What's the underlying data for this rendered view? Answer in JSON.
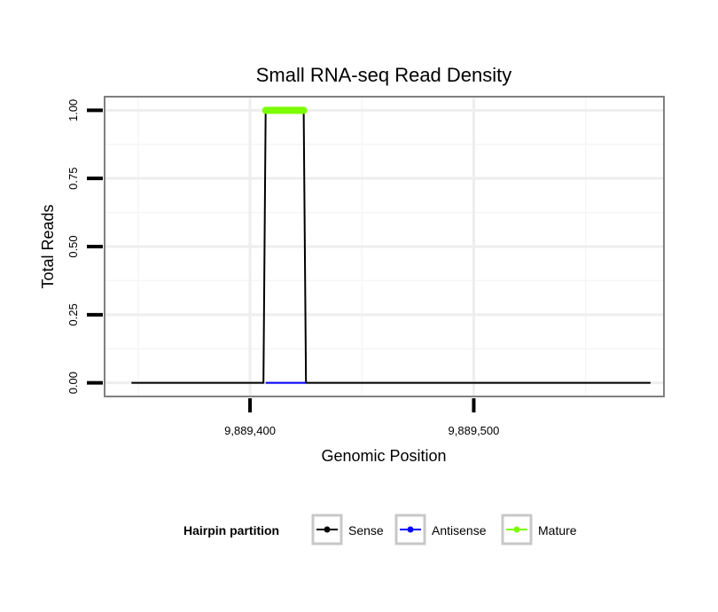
{
  "chart_data": {
    "type": "line",
    "title": "Small RNA-seq Read Density",
    "xlabel": "Genomic Position",
    "ylabel": "Total Reads",
    "xlim": [
      9889335,
      9889585
    ],
    "ylim": [
      -0.05,
      1.05
    ],
    "x_ticks": [
      9889400,
      9889500
    ],
    "x_tick_labels": [
      "9,889,400",
      "9,889,500"
    ],
    "y_ticks": [
      0,
      0.25,
      0.5,
      0.75,
      1
    ],
    "y_tick_labels": [
      "0.00",
      "0.25",
      "0.50",
      "0.75",
      "1.00"
    ],
    "grid": true,
    "legend": {
      "title": "Hairpin partition",
      "position": "bottom",
      "entries": [
        {
          "label": "Sense",
          "color": "#000000"
        },
        {
          "label": "Antisense",
          "color": "#0000ff"
        },
        {
          "label": "Mature",
          "color": "#7cfc00"
        }
      ]
    },
    "series": [
      {
        "name": "Sense",
        "color": "#000000",
        "points": [
          [
            9889347,
            0
          ],
          [
            9889406,
            0
          ],
          [
            9889407,
            1
          ],
          [
            9889424,
            1
          ],
          [
            9889425,
            0
          ],
          [
            9889579,
            0
          ]
        ]
      },
      {
        "name": "Antisense",
        "color": "#0000ff",
        "points": [
          [
            9889407,
            0
          ],
          [
            9889425,
            0
          ]
        ]
      },
      {
        "name": "Mature",
        "color": "#7cfc00",
        "points": [
          [
            9889407,
            1
          ],
          [
            9889424,
            1
          ]
        ]
      }
    ]
  }
}
